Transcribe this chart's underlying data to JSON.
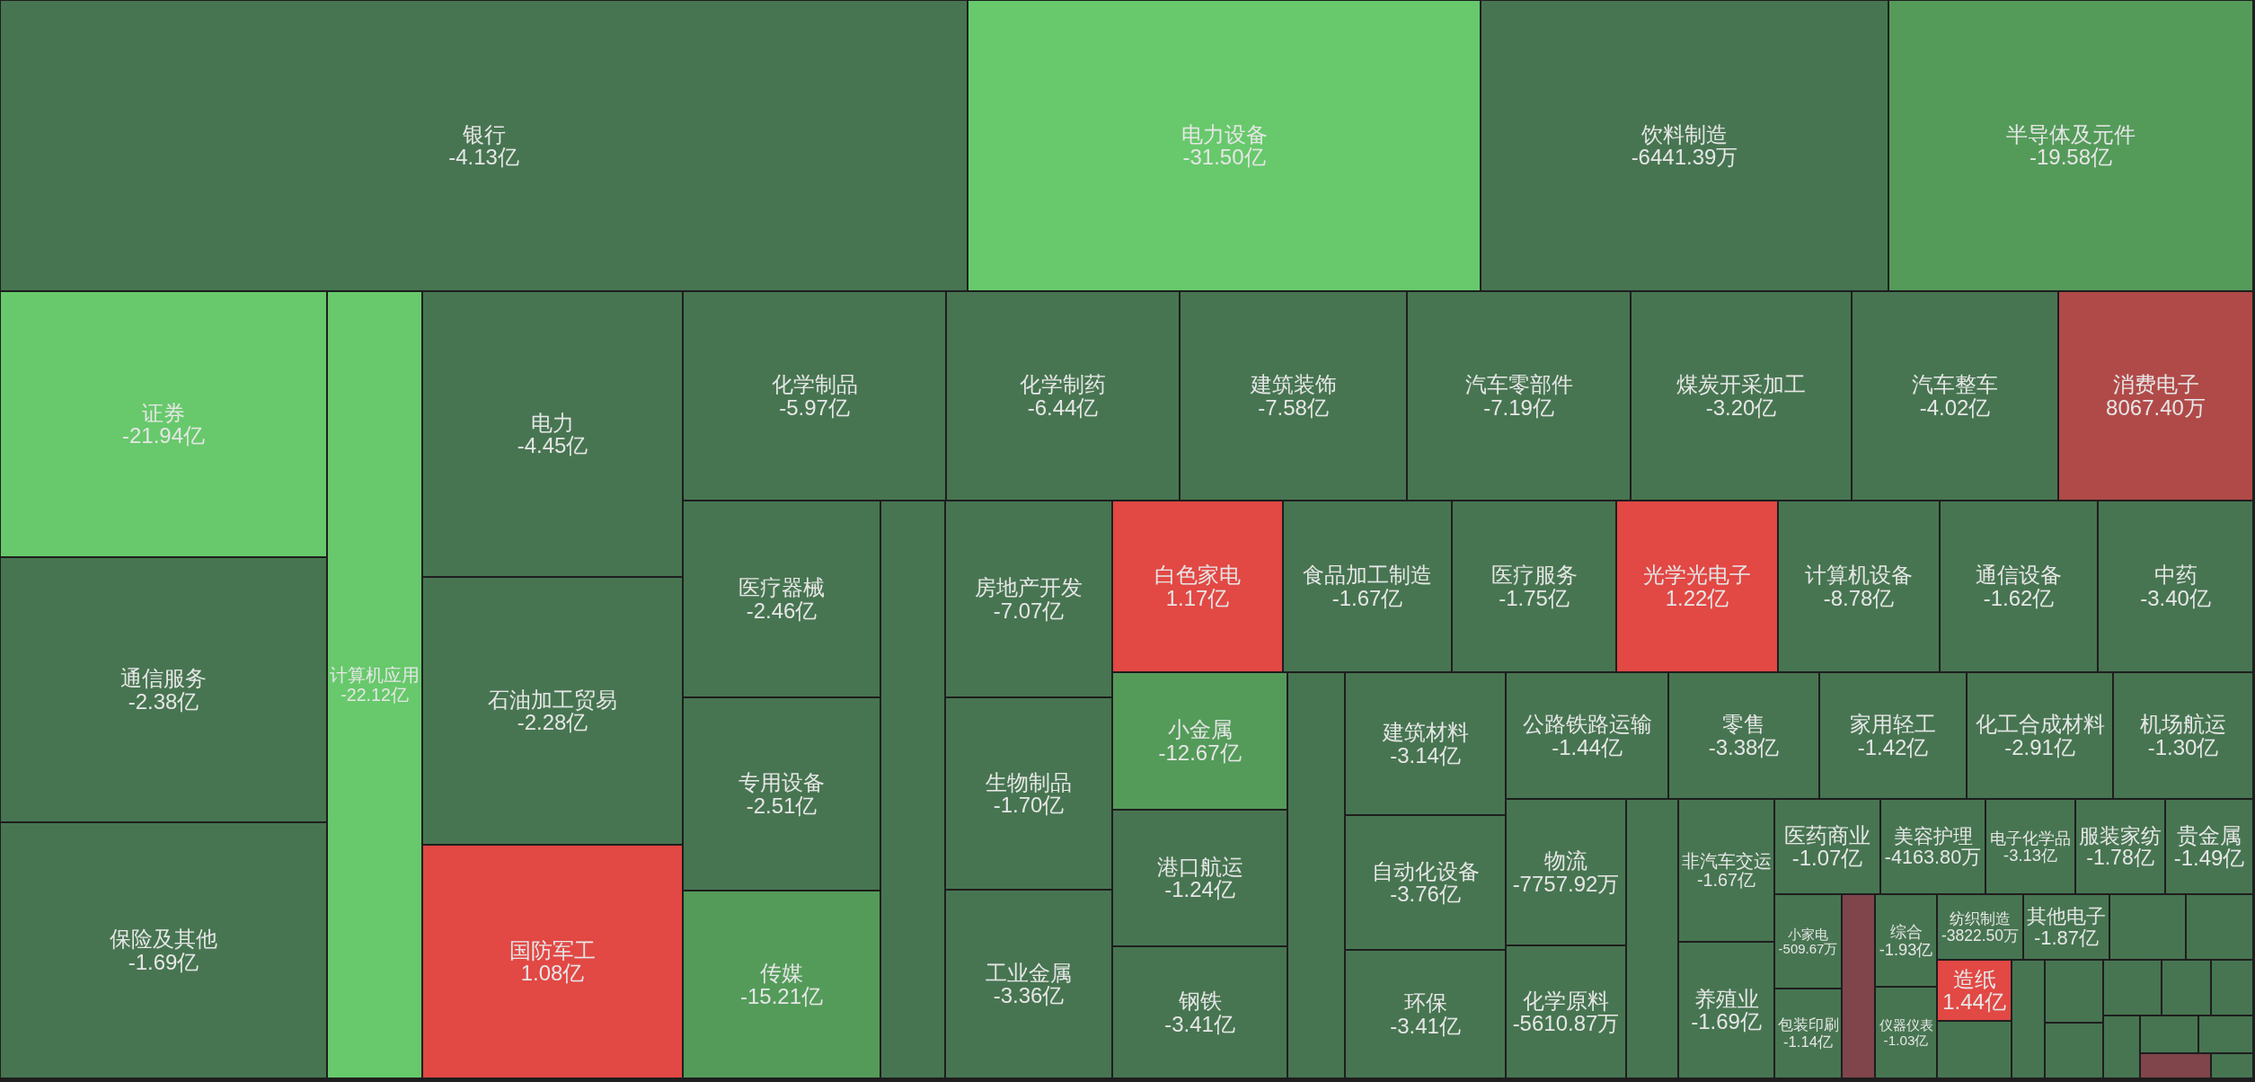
{
  "chart_data": {
    "type": "other",
    "categories": [
      "银行",
      "电力设备",
      "饮料制造",
      "半导体及元件",
      "证券",
      "通信服务",
      "保险及其他",
      "计算机应用",
      "电力",
      "石油加工贸易",
      "国防军工",
      "化学制品",
      "化学制药",
      "建筑装饰",
      "汽车零部件",
      "煤炭开采加工",
      "汽车整车",
      "消费电子",
      "医疗器械",
      "专用设备",
      "传媒",
      null,
      "房地产开发",
      "生物制品",
      "工业金属",
      "白色家电",
      "食品加工制造",
      "医疗服务",
      "光学光电子",
      "计算机设备",
      "通信设备",
      "中药",
      "小金属",
      "港口航运",
      "钢铁",
      null,
      "建筑材料",
      "自动化设备",
      "环保",
      "公路铁路运输",
      "零售",
      "家用轻工",
      "化工合成材料",
      "机场航运",
      "物流",
      "化学原料",
      null,
      "非汽车交运",
      "养殖业",
      "医药商业",
      "美容护理",
      "电子化学品",
      "服装家纺",
      "贵金属",
      "小家电",
      "包装印刷",
      null,
      "综合",
      "仪器仪表",
      "纺织制造",
      "其他电子",
      "造纸",
      null,
      null,
      null,
      null,
      null,
      null,
      null,
      null,
      null,
      null,
      null,
      null,
      null,
      null
    ],
    "values": [
      -4.13,
      -31.5,
      -6441.39,
      -19.58,
      -21.94,
      -2.38,
      -1.69,
      -22.12,
      -4.45,
      -2.28,
      1.08,
      -5.97,
      -6.44,
      -7.58,
      -7.19,
      -3.2,
      -4.02,
      8067.4,
      -2.46,
      -2.51,
      -15.21,
      null,
      -7.07,
      -1.7,
      -3.36,
      1.17,
      -1.67,
      -1.75,
      1.22,
      -8.78,
      -1.62,
      -3.4,
      -12.67,
      -1.24,
      -3.41,
      null,
      -3.14,
      -3.76,
      -3.41,
      -1.44,
      -3.38,
      -1.42,
      -2.91,
      -1.3,
      -7757.92,
      -5610.87,
      null,
      -1.67,
      -1.69,
      -1.07,
      -4163.8,
      -3.13,
      -1.78,
      -1.49,
      -509.67,
      -1.14,
      null,
      -1.93,
      -1.03,
      -3822.5,
      -1.87,
      1.44,
      null,
      null,
      null,
      null,
      null,
      null,
      null,
      null,
      null,
      null,
      null,
      null,
      null,
      null
    ],
    "value_labels": [
      "-4.13亿",
      "-31.50亿",
      "-6441.39万",
      "-19.58亿",
      "-21.94亿",
      "-2.38亿",
      "-1.69亿",
      "-22.12亿",
      "-4.45亿",
      "-2.28亿",
      "1.08亿",
      "-5.97亿",
      "-6.44亿",
      "-7.58亿",
      "-7.19亿",
      "-3.20亿",
      "-4.02亿",
      "8067.40万",
      "-2.46亿",
      "-2.51亿",
      "-15.21亿",
      null,
      "-7.07亿",
      "-1.70亿",
      "-3.36亿",
      "1.17亿",
      "-1.67亿",
      "-1.75亿",
      "1.22亿",
      "-8.78亿",
      "-1.62亿",
      "-3.40亿",
      "-12.67亿",
      "-1.24亿",
      "-3.41亿",
      null,
      "-3.14亿",
      "-3.76亿",
      "-3.41亿",
      "-1.44亿",
      "-3.38亿",
      "-1.42亿",
      "-2.91亿",
      "-1.30亿",
      "-7757.92万",
      "-5610.87万",
      null,
      "-1.67亿",
      "-1.69亿",
      "-1.07亿",
      "-4163.80万",
      "-3.13亿",
      "-1.78亿",
      "-1.49亿",
      "-509.67万",
      "-1.14亿",
      null,
      "-1.93亿",
      "-1.03亿",
      "-3822.50万",
      "-1.87亿",
      "1.44亿",
      null,
      null,
      null,
      null,
      null,
      null,
      null,
      null,
      null,
      null,
      null,
      null,
      null,
      null
    ],
    "colors": [
      "#477551",
      "#67c96b",
      "#477551",
      "#549b5a",
      "#67c96b",
      "#477551",
      "#477551",
      "#67c96b",
      "#477551",
      "#477551",
      "#e24844",
      "#477551",
      "#477551",
      "#477551",
      "#477551",
      "#477551",
      "#477551",
      "#b04a48",
      "#477551",
      "#477551",
      "#549b5a",
      "#477551",
      "#477551",
      "#477551",
      "#477551",
      "#e24844",
      "#477551",
      "#477551",
      "#e24844",
      "#477551",
      "#477551",
      "#477551",
      "#549b5a",
      "#477551",
      "#477551",
      "#477551",
      "#477551",
      "#477551",
      "#477551",
      "#477551",
      "#477551",
      "#477551",
      "#477551",
      "#477551",
      "#477551",
      "#477551",
      "#477551",
      "#477551",
      "#477551",
      "#477551",
      "#477551",
      "#477551",
      "#477551",
      "#477551",
      "#477551",
      "#477551",
      "#7f454b",
      "#477551",
      "#477551",
      "#477551",
      "#477551",
      "#e24844",
      "#477551",
      "#477551",
      "#477551",
      "#477551",
      "#477551",
      "#477551",
      "#477551",
      "#477551",
      "#477551",
      "#477551",
      "#477551",
      "#477551",
      "#7f454b",
      "#477551"
    ]
  }
}
